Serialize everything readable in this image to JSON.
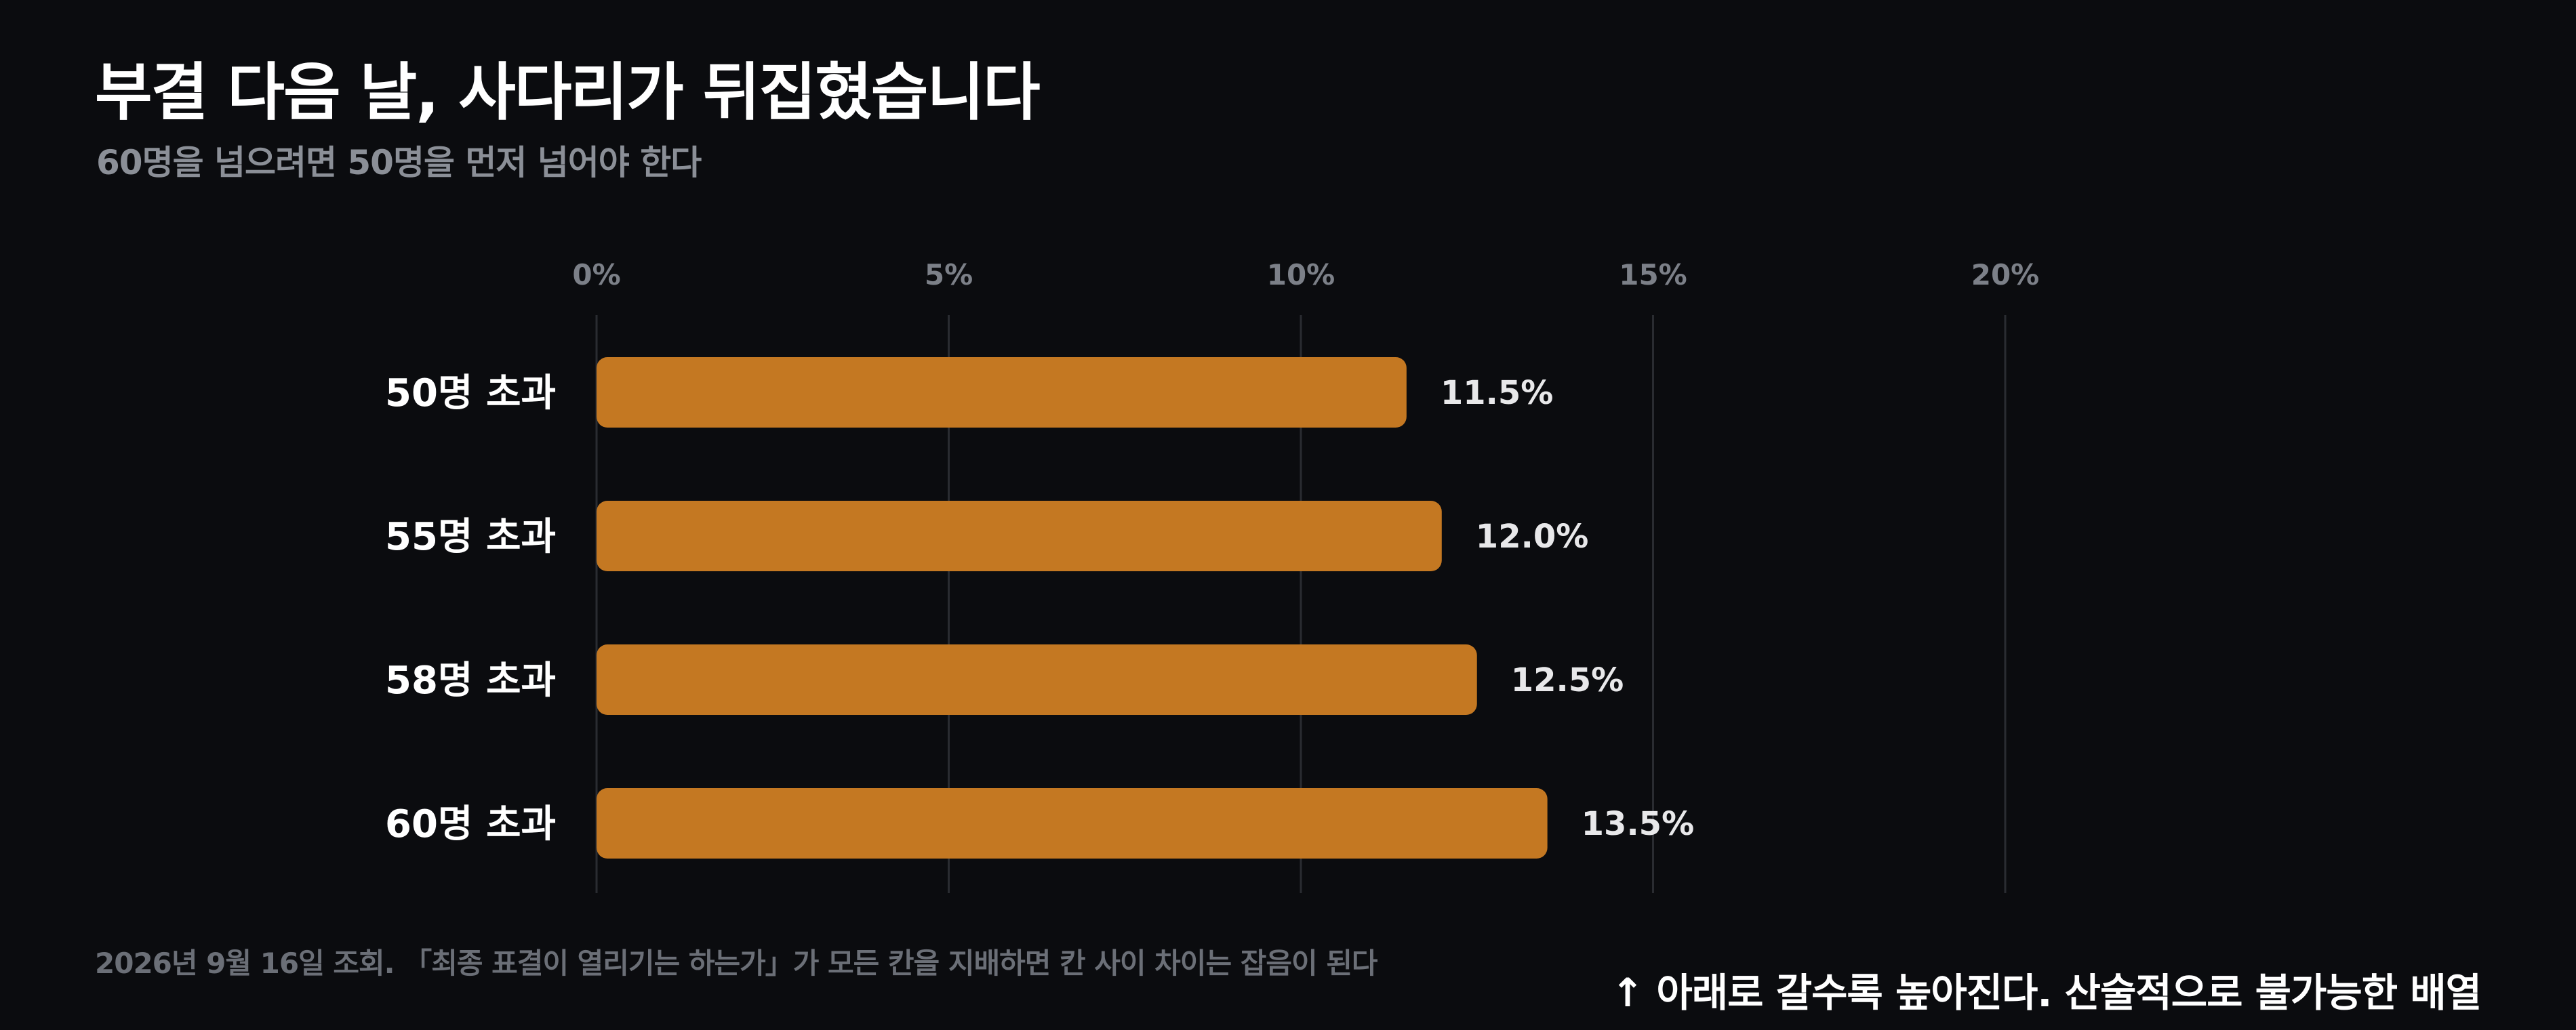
{
  "title": "부결 다음 날, 사다리가 뒤집혔습니다",
  "subtitle": "60명을 넘으려면 50명을 먼저 넘어야 한다",
  "footnote": "2026년 9월 16일 조회. 「최종 표결이 열리기는 하는가」가 모든 칸을 지배하면 칸 사이 차이는 잡음이 된다",
  "annotation": "↑ 아래로 갈수록 높아진다. 산술적으로 불가능한 배열",
  "colors": {
    "background": "#0b0c0f",
    "bar": "#c47822",
    "grid": "#2a2c31",
    "tick_text": "#7c8088",
    "category_text": "#ffffff",
    "value_text": "#e8e8ea"
  },
  "chart_data": {
    "type": "bar",
    "orientation": "horizontal",
    "categories": [
      "50명 초과",
      "55명 초과",
      "58명 초과",
      "60명 초과"
    ],
    "values": [
      11.5,
      12.0,
      12.5,
      13.5
    ],
    "value_labels": [
      "11.5%",
      "12.0%",
      "12.5%",
      "13.5%"
    ],
    "xlim": [
      0,
      20
    ],
    "x_ticks": [
      0,
      5,
      10,
      15,
      20
    ],
    "x_tick_labels": [
      "0%",
      "5%",
      "10%",
      "15%",
      "20%"
    ],
    "x_axis_position": "top",
    "grid": true
  }
}
